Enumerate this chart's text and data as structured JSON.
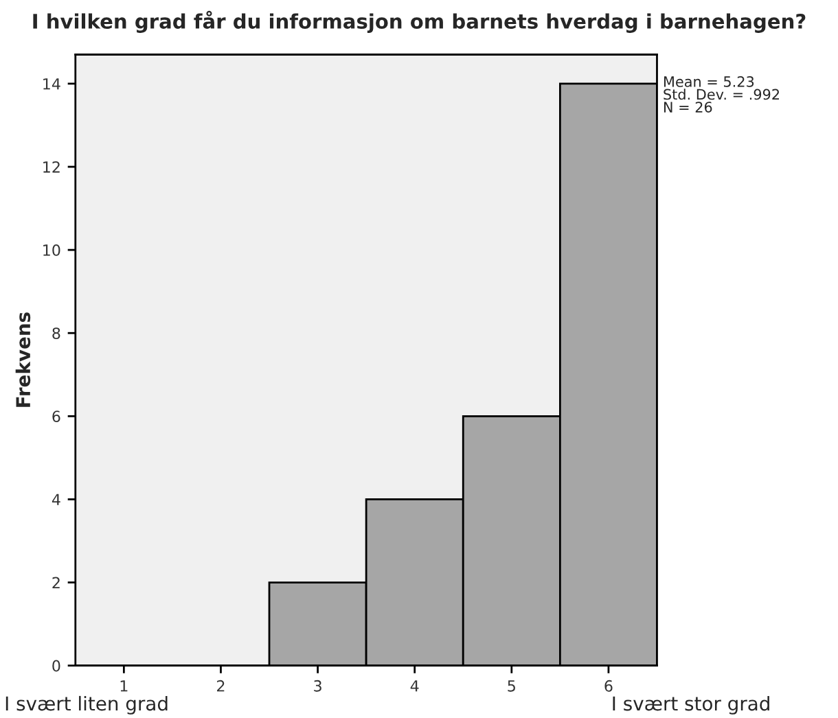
{
  "chart_data": {
    "type": "histogram",
    "title": "I hvilken grad får du informasjon om barnets hverdag i barnehagen?",
    "ylabel": "Frekvens",
    "bins": [
      0.5,
      1.5,
      2.5,
      3.5,
      4.5,
      5.5,
      6.5
    ],
    "values": [
      0,
      0,
      2,
      4,
      6,
      14
    ],
    "color": "#a6a6a6",
    "xlim": [
      0.5,
      6.5
    ],
    "xticks": [
      1,
      2,
      3,
      4,
      5,
      6
    ],
    "ylim": [
      0,
      14.7
    ],
    "yticks": [
      0,
      2,
      4,
      6,
      8,
      10,
      12,
      14
    ],
    "grid": false,
    "legend": false,
    "annotations": [
      "Mean = 5.23\nStd. Dev. = .992\nN = 26",
      "I svært liten grad",
      "I svært stor grad"
    ]
  }
}
